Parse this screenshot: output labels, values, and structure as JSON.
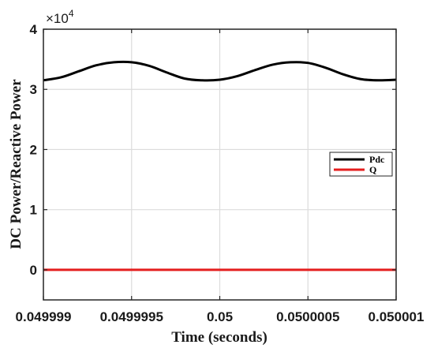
{
  "chart_data": {
    "type": "line",
    "xlabel": "Time (seconds)",
    "ylabel": "DC Power/Reactive Power",
    "xlim": [
      0.049999,
      0.050001
    ],
    "ylim": [
      -0.5,
      4
    ],
    "y_multiplier": {
      "base": "×10",
      "exponent": "4"
    },
    "x_ticks": [
      {
        "value": 0.049999,
        "label": "0.049999"
      },
      {
        "value": 0.0499995,
        "label": "0.0499995"
      },
      {
        "value": 0.05,
        "label": "0.05"
      },
      {
        "value": 0.0500005,
        "label": "0.0500005"
      },
      {
        "value": 0.050001,
        "label": "0.050001"
      }
    ],
    "y_ticks": [
      {
        "value": 0,
        "label": "0"
      },
      {
        "value": 1,
        "label": "1"
      },
      {
        "value": 2,
        "label": "2"
      },
      {
        "value": 3,
        "label": "3"
      },
      {
        "value": 4,
        "label": "4"
      }
    ],
    "grid": true,
    "legend_position": "right",
    "series": [
      {
        "name": "Pdc",
        "color": "#000000",
        "x": [
          0.049999,
          0.0499991,
          0.0499992,
          0.0499993,
          0.0499994,
          0.0499995,
          0.0499996,
          0.0499997,
          0.0499998,
          0.0499999,
          0.05,
          0.0500001,
          0.0500002,
          0.0500003,
          0.0500004,
          0.0500005,
          0.0500006,
          0.0500007,
          0.0500008,
          0.0500009,
          0.050001
        ],
        "y": [
          3.15,
          3.2,
          3.3,
          3.4,
          3.45,
          3.45,
          3.39,
          3.28,
          3.18,
          3.15,
          3.16,
          3.22,
          3.32,
          3.41,
          3.45,
          3.44,
          3.36,
          3.25,
          3.17,
          3.15,
          3.16
        ]
      },
      {
        "name": "Q",
        "color": "#e41e1e",
        "x": [
          0.049999,
          0.050001
        ],
        "y": [
          0,
          0
        ]
      }
    ]
  }
}
